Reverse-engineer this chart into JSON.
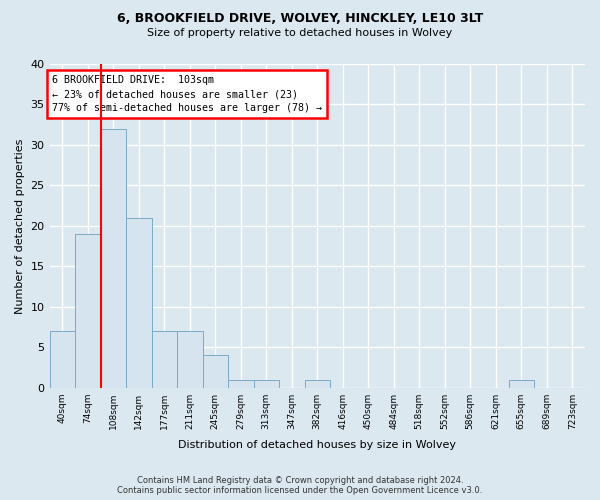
{
  "title1": "6, BROOKFIELD DRIVE, WOLVEY, HINCKLEY, LE10 3LT",
  "title2": "Size of property relative to detached houses in Wolvey",
  "xlabel": "Distribution of detached houses by size in Wolvey",
  "ylabel": "Number of detached properties",
  "bin_labels": [
    "40sqm",
    "74sqm",
    "108sqm",
    "142sqm",
    "177sqm",
    "211sqm",
    "245sqm",
    "279sqm",
    "313sqm",
    "347sqm",
    "382sqm",
    "416sqm",
    "450sqm",
    "484sqm",
    "518sqm",
    "552sqm",
    "586sqm",
    "621sqm",
    "655sqm",
    "689sqm",
    "723sqm"
  ],
  "bar_values": [
    7,
    19,
    32,
    21,
    7,
    7,
    4,
    1,
    1,
    0,
    1,
    0,
    0,
    0,
    0,
    0,
    0,
    0,
    1,
    0,
    0
  ],
  "bar_color": "#d6e4f0",
  "bar_edge_color": "#7aaac8",
  "annotation_title": "6 BROOKFIELD DRIVE:  103sqm",
  "annotation_line1": "← 23% of detached houses are smaller (23)",
  "annotation_line2": "77% of semi-detached houses are larger (78) →",
  "annotation_box_color": "white",
  "annotation_box_edge": "red",
  "vline_color": "red",
  "ylim": [
    0,
    40
  ],
  "yticks": [
    0,
    5,
    10,
    15,
    20,
    25,
    30,
    35,
    40
  ],
  "footer1": "Contains HM Land Registry data © Crown copyright and database right 2024.",
  "footer2": "Contains public sector information licensed under the Open Government Licence v3.0.",
  "background_color": "#dce8f0",
  "plot_bg_color": "#dce8f0",
  "grid_color": "#ffffff"
}
